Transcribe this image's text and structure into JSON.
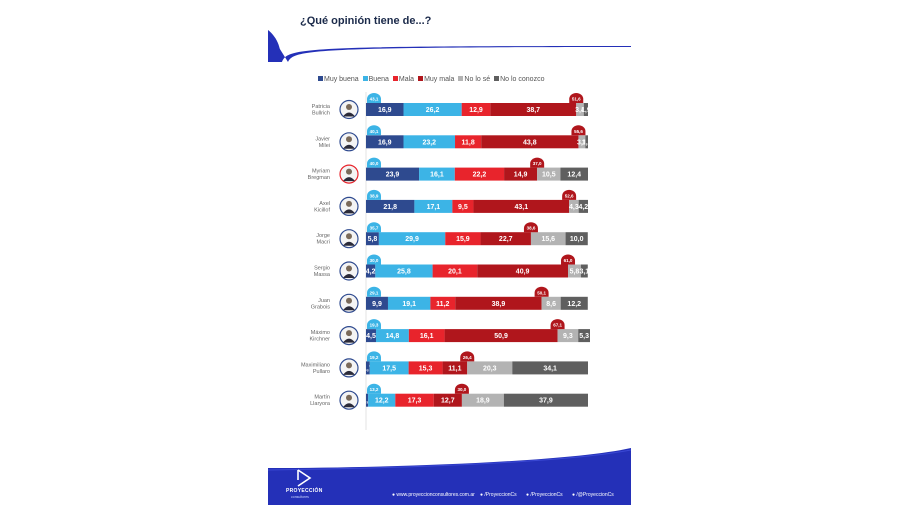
{
  "header": {
    "title": "¿Qué opinión tiene de...?"
  },
  "footer": {
    "brand": "PROYECCIÓN",
    "brand_sub": "consultores",
    "links": [
      "www.proyeccionconsultores.com.ar",
      "/ProyeccionCs",
      "/ProyeccionCs",
      "/@ProyeccionCs"
    ]
  },
  "colors": {
    "muy_buena": "#2e4a8f",
    "buena": "#3cb4e6",
    "mala": "#e8242c",
    "muy_mala": "#b0161c",
    "no_lo_se": "#b3b3b3",
    "no_lo_conozco": "#5f5f5f",
    "brand_blue": "#2430b8"
  },
  "chart_data": {
    "type": "bar",
    "stacked": true,
    "orientation": "horizontal",
    "title": "¿Qué opinión tiene de...?",
    "legend_position": "top",
    "categories": [
      "Patricia Bullrich",
      "Javier Milei",
      "Myriam Bregman",
      "Axel Kicillof",
      "Jorge Macri",
      "Sergio Massa",
      "Juan Grabois",
      "Máximo Kirchner",
      "Maximiliano Pullaro",
      "Martín Llaryora"
    ],
    "category_labels": [
      [
        "Patricia",
        "Bullrich"
      ],
      [
        "Javier",
        "Milei"
      ],
      [
        "Myriam",
        "Bregman"
      ],
      [
        "Axel",
        "Kicillof"
      ],
      [
        "Jorge",
        "Macri"
      ],
      [
        "Sergio",
        "Massa"
      ],
      [
        "Juan",
        "Grabois"
      ],
      [
        "Máximo",
        "Kirchner"
      ],
      [
        "Maximiliano",
        "Pullaro"
      ],
      [
        "Martín",
        "Llaryora"
      ]
    ],
    "series": [
      {
        "name": "Muy buena",
        "values": [
          16.9,
          16.9,
          23.9,
          21.8,
          5.8,
          4.2,
          9.9,
          4.5,
          1.7,
          1.0
        ]
      },
      {
        "name": "Buena",
        "values": [
          26.2,
          23.2,
          16.1,
          17.1,
          29.9,
          25.8,
          19.1,
          14.8,
          17.5,
          12.2
        ]
      },
      {
        "name": "Mala",
        "values": [
          12.9,
          11.8,
          22.2,
          9.5,
          15.9,
          20.1,
          11.2,
          16.1,
          15.3,
          17.3
        ]
      },
      {
        "name": "Muy mala",
        "values": [
          38.7,
          43.8,
          14.9,
          43.1,
          22.7,
          40.9,
          38.9,
          50.9,
          11.1,
          12.7
        ]
      },
      {
        "name": "No lo sé",
        "values": [
          3.4,
          3.1,
          10.5,
          4.3,
          15.6,
          5.8,
          8.6,
          9.3,
          20.3,
          18.9
        ]
      },
      {
        "name": "No lo conozco",
        "values": [
          1.9,
          1.2,
          12.4,
          4.2,
          10.0,
          3.1,
          12.2,
          5.3,
          34.1,
          37.9
        ]
      }
    ],
    "bar_labels": [
      [
        "16,9",
        "26,2",
        "12,9",
        "38,7",
        "3,4",
        "1,9"
      ],
      [
        "16,9",
        "23,2",
        "11,8",
        "43,8",
        "3,1",
        "1,2"
      ],
      [
        "23,9",
        "16,1",
        "22,2",
        "14,9",
        "10,5",
        "12,4"
      ],
      [
        "21,8",
        "17,1",
        "9,5",
        "43,1",
        "4,3",
        "4,2"
      ],
      [
        "5,8",
        "29,9",
        "15,9",
        "22,7",
        "15,6",
        "10,0"
      ],
      [
        "4,2",
        "25,8",
        "20,1",
        "40,9",
        "5,8",
        "3,1"
      ],
      [
        "9,9",
        "19,1",
        "11,2",
        "38,9",
        "8,6",
        "12,2"
      ],
      [
        "4,5",
        "14,8",
        "16,1",
        "50,9",
        "9,3",
        "5,3"
      ],
      [
        "1,7",
        "17,5",
        "15,3",
        "11,1",
        "20,3",
        "34,1"
      ],
      [
        "1,0",
        "12,2",
        "17,3",
        "12,7",
        "18,9",
        "37,9"
      ]
    ],
    "positive_totals": [
      "43,1",
      "40,1",
      "40,0",
      "38,9",
      "35,7",
      "30,0",
      "29,1",
      "19,3",
      "19,2",
      "13,2"
    ],
    "negative_totals": [
      "51,6",
      "55,6",
      "37,0",
      "52,6",
      "38,6",
      "61,0",
      "50,1",
      "67,1",
      "26,4",
      "30,0"
    ]
  }
}
